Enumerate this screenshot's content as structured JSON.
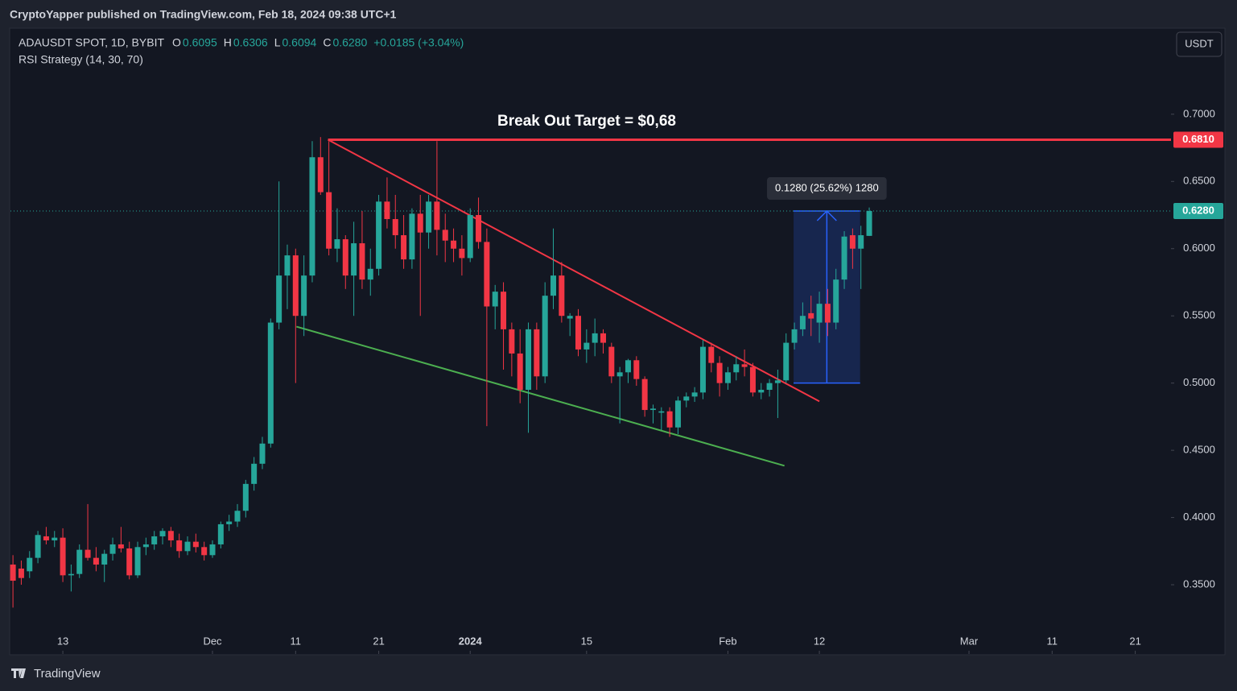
{
  "chart_data": {
    "type": "candlestick",
    "published": "CryptoYapper published on TradingView.com, Feb 18, 2024 09:38 UTC+1",
    "symbol": "ADAUSDT SPOT, 1D, BYBIT",
    "ohlc_legend": [
      {
        "key": "O",
        "value": "0.6095"
      },
      {
        "key": "H",
        "value": "0.6306"
      },
      {
        "key": "L",
        "value": "0.6094"
      },
      {
        "key": "C",
        "value": "0.6280"
      }
    ],
    "change": "+0.0185 (+3.04%)",
    "indicator": "RSI Strategy (14, 30, 70)",
    "currency": "USDT",
    "brand": "TradingView",
    "annotation": "Break Out Target = $0,68",
    "up_color": "#26a69a",
    "down_color": "#f23645",
    "x": [
      -6,
      -5,
      -4,
      -3,
      -2,
      -1,
      0,
      1,
      2,
      3,
      4,
      5,
      6,
      7,
      8,
      9,
      10,
      11,
      12,
      13,
      14,
      15,
      16,
      17,
      18,
      19,
      20,
      21,
      22,
      23,
      24,
      25,
      26,
      27,
      28,
      29,
      30,
      31,
      32,
      33,
      34,
      35,
      36,
      37,
      38,
      39,
      40,
      41,
      42,
      43,
      44,
      45,
      46,
      47,
      48,
      49,
      50,
      51,
      52,
      53,
      54,
      55,
      56,
      57,
      58,
      59,
      60,
      61,
      62,
      63,
      64,
      65,
      66,
      67,
      68,
      69,
      70,
      71,
      72,
      73,
      74,
      75,
      76,
      77,
      78,
      79,
      80,
      81,
      82,
      83,
      84,
      85,
      86,
      87,
      88,
      89,
      90,
      91,
      92,
      93,
      94,
      95,
      96,
      97
    ],
    "open": [
      0.365,
      0.362,
      0.36,
      0.37,
      0.386,
      0.383,
      0.385,
      0.357,
      0.358,
      0.376,
      0.37,
      0.365,
      0.373,
      0.38,
      0.377,
      0.357,
      0.378,
      0.38,
      0.386,
      0.39,
      0.383,
      0.375,
      0.382,
      0.378,
      0.372,
      0.38,
      0.395,
      0.397,
      0.405,
      0.425,
      0.44,
      0.455,
      0.545,
      0.58,
      0.595,
      0.55,
      0.58,
      0.668,
      0.642,
      0.6,
      0.607,
      0.58,
      0.604,
      0.577,
      0.585,
      0.635,
      0.622,
      0.61,
      0.592,
      0.626,
      0.612,
      0.635,
      0.614,
      0.606,
      0.6,
      0.593,
      0.625,
      0.605,
      0.557,
      0.568,
      0.54,
      0.522,
      0.495,
      0.54,
      0.505,
      0.565,
      0.58,
      0.548,
      0.55,
      0.525,
      0.53,
      0.537,
      0.527,
      0.505,
      0.508,
      0.517,
      0.503,
      0.48,
      0.478,
      0.479,
      0.467,
      0.487,
      0.49,
      0.493,
      0.527,
      0.515,
      0.5,
      0.508,
      0.514,
      0.512,
      0.493,
      0.495,
      0.5,
      0.502,
      0.53,
      0.54,
      0.552,
      0.545,
      0.559,
      0.545,
      0.577,
      0.61,
      0.6,
      0.6095
    ],
    "high": [
      0.372,
      0.368,
      0.375,
      0.39,
      0.393,
      0.39,
      0.392,
      0.365,
      0.38,
      0.41,
      0.378,
      0.376,
      0.385,
      0.393,
      0.382,
      0.382,
      0.385,
      0.39,
      0.392,
      0.393,
      0.388,
      0.386,
      0.388,
      0.382,
      0.383,
      0.397,
      0.402,
      0.41,
      0.428,
      0.445,
      0.46,
      0.548,
      0.65,
      0.603,
      0.6,
      0.595,
      0.68,
      0.683,
      0.68,
      0.63,
      0.61,
      0.62,
      0.628,
      0.6,
      0.64,
      0.653,
      0.64,
      0.625,
      0.63,
      0.64,
      0.64,
      0.68,
      0.626,
      0.615,
      0.61,
      0.63,
      0.638,
      0.615,
      0.573,
      0.575,
      0.545,
      0.54,
      0.545,
      0.545,
      0.575,
      0.615,
      0.59,
      0.552,
      0.555,
      0.54,
      0.548,
      0.54,
      0.53,
      0.512,
      0.518,
      0.52,
      0.505,
      0.484,
      0.482,
      0.482,
      0.49,
      0.493,
      0.497,
      0.532,
      0.53,
      0.52,
      0.512,
      0.52,
      0.525,
      0.515,
      0.5,
      0.503,
      0.51,
      0.537,
      0.545,
      0.56,
      0.565,
      0.568,
      0.57,
      0.585,
      0.613,
      0.615,
      0.617,
      0.6306
    ],
    "low": [
      0.333,
      0.35,
      0.355,
      0.366,
      0.38,
      0.378,
      0.352,
      0.345,
      0.355,
      0.368,
      0.36,
      0.352,
      0.368,
      0.374,
      0.354,
      0.355,
      0.372,
      0.376,
      0.38,
      0.378,
      0.37,
      0.372,
      0.374,
      0.368,
      0.37,
      0.377,
      0.39,
      0.393,
      0.4,
      0.42,
      0.436,
      0.452,
      0.54,
      0.555,
      0.5,
      0.535,
      0.575,
      0.64,
      0.595,
      0.59,
      0.57,
      0.55,
      0.57,
      0.565,
      0.58,
      0.615,
      0.6,
      0.585,
      0.585,
      0.55,
      0.6,
      0.595,
      0.59,
      0.59,
      0.58,
      0.59,
      0.6,
      0.468,
      0.54,
      0.51,
      0.505,
      0.485,
      0.463,
      0.495,
      0.5,
      0.555,
      0.545,
      0.535,
      0.52,
      0.515,
      0.52,
      0.522,
      0.5,
      0.47,
      0.5,
      0.498,
      0.475,
      0.47,
      0.465,
      0.46,
      0.462,
      0.482,
      0.486,
      0.488,
      0.508,
      0.49,
      0.495,
      0.502,
      0.505,
      0.49,
      0.488,
      0.49,
      0.474,
      0.5,
      0.525,
      0.535,
      0.535,
      0.53,
      0.535,
      0.54,
      0.57,
      0.585,
      0.57,
      0.6094
    ],
    "close": [
      0.353,
      0.355,
      0.37,
      0.387,
      0.383,
      0.385,
      0.357,
      0.358,
      0.376,
      0.37,
      0.365,
      0.373,
      0.38,
      0.377,
      0.357,
      0.378,
      0.38,
      0.386,
      0.39,
      0.383,
      0.375,
      0.382,
      0.378,
      0.372,
      0.38,
      0.395,
      0.397,
      0.405,
      0.425,
      0.44,
      0.455,
      0.545,
      0.58,
      0.595,
      0.55,
      0.58,
      0.668,
      0.642,
      0.6,
      0.607,
      0.58,
      0.604,
      0.577,
      0.585,
      0.635,
      0.622,
      0.61,
      0.592,
      0.626,
      0.612,
      0.635,
      0.614,
      0.606,
      0.6,
      0.593,
      0.625,
      0.605,
      0.557,
      0.568,
      0.54,
      0.522,
      0.495,
      0.54,
      0.505,
      0.565,
      0.58,
      0.55,
      0.55,
      0.525,
      0.53,
      0.537,
      0.53,
      0.505,
      0.508,
      0.517,
      0.503,
      0.48,
      0.481,
      0.479,
      0.467,
      0.487,
      0.49,
      0.493,
      0.527,
      0.515,
      0.5,
      0.508,
      0.514,
      0.512,
      0.493,
      0.495,
      0.5,
      0.502,
      0.53,
      0.54,
      0.55,
      0.548,
      0.559,
      0.545,
      0.577,
      0.609,
      0.6,
      0.61,
      0.628
    ],
    "xlim": [
      -6.3,
      133.3
    ],
    "xticks": [
      {
        "value": 0,
        "label": "13"
      },
      {
        "value": 18,
        "label": "Dec"
      },
      {
        "value": 28,
        "label": "11"
      },
      {
        "value": 38,
        "label": "21"
      },
      {
        "value": 49,
        "label": "2024"
      },
      {
        "value": 63,
        "label": "15"
      },
      {
        "value": 80,
        "label": "Feb"
      },
      {
        "value": 91,
        "label": "12"
      },
      {
        "value": 109,
        "label": "Mar"
      },
      {
        "value": 119,
        "label": "11"
      },
      {
        "value": 129,
        "label": "21"
      }
    ],
    "ylim": [
      0.2985,
      0.7634
    ],
    "yticks": [
      {
        "value": 0.35,
        "label": "0.3500"
      },
      {
        "value": 0.4,
        "label": "0.4000"
      },
      {
        "value": 0.45,
        "label": "0.4500"
      },
      {
        "value": 0.5,
        "label": "0.5000"
      },
      {
        "value": 0.55,
        "label": "0.5500"
      },
      {
        "value": 0.6,
        "label": "0.6000"
      },
      {
        "value": 0.65,
        "label": "0.6500"
      },
      {
        "value": 0.7,
        "label": "0.7000"
      }
    ],
    "price_tags": [
      {
        "value": 0.681,
        "label": "0.6810",
        "color": "#f23645"
      },
      {
        "value": 0.628,
        "label": "0.6280",
        "color": "#26a69a"
      }
    ],
    "trendlines": [
      {
        "color": "#f23645",
        "width": 3,
        "x": [
          31.9,
          133.3
        ],
        "y": [
          0.681,
          0.681
        ]
      },
      {
        "color": "#f23645",
        "width": 2,
        "x": [
          31.9,
          91
        ],
        "y": [
          0.681,
          0.4864
        ]
      },
      {
        "color": "#4caf50",
        "width": 2,
        "x": [
          28.1,
          86.8
        ],
        "y": [
          0.542,
          0.4385
        ]
      }
    ],
    "measure": {
      "x": [
        87.9,
        95.9
      ],
      "y": [
        0.5,
        0.628
      ],
      "label": "0.1280 (25.62%) 1280",
      "color": "#2962ff"
    }
  }
}
